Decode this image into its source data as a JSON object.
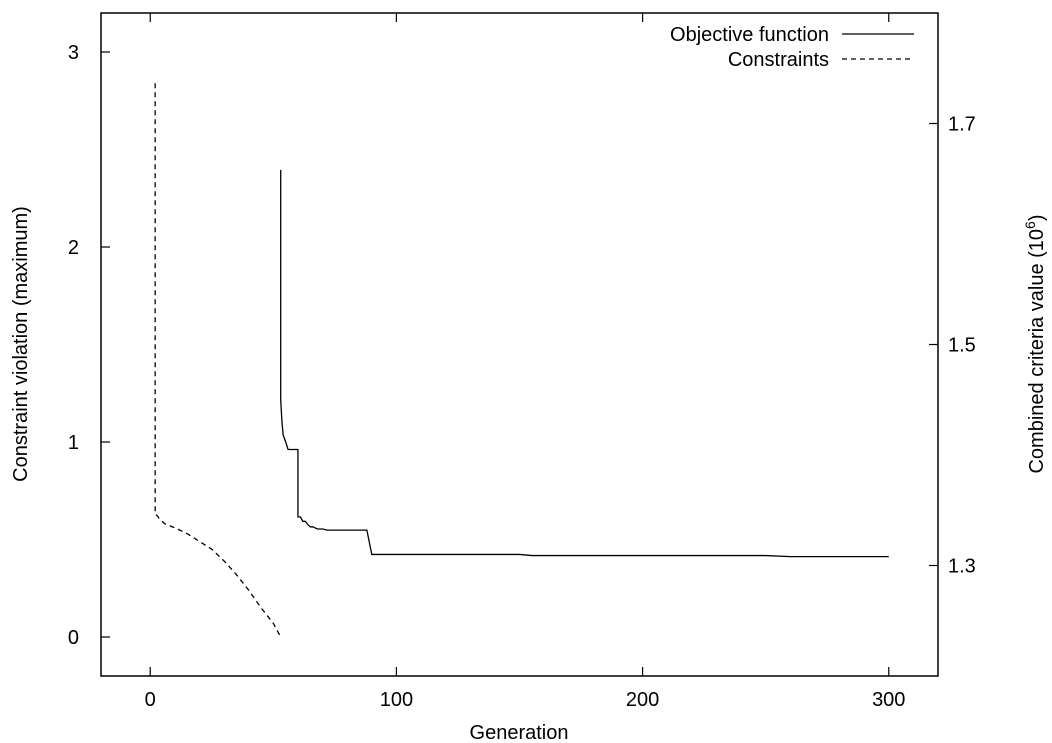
{
  "chart_data": {
    "type": "line",
    "xlabel": "Generation",
    "ylabel_left": "Constraint violation (maximum)",
    "ylabel_right_prefix": "Combined criteria value (10",
    "ylabel_right_exp": "6",
    "ylabel_right_suffix": ")",
    "xlim": [
      -20,
      320
    ],
    "ylim_left": [
      -0.2,
      3.2
    ],
    "ylim_right": [
      1.2,
      1.8
    ],
    "x_ticks": [
      0,
      100,
      200,
      300
    ],
    "x_tick_labels": [
      "0",
      "100",
      "200",
      "300"
    ],
    "y_left_ticks": [
      0,
      1,
      2,
      3
    ],
    "y_left_tick_labels": [
      "0",
      "1",
      "2",
      "3"
    ],
    "y_right_ticks": [
      1.3,
      1.5,
      1.7
    ],
    "y_right_tick_labels": [
      "1.3",
      "1.5",
      "1.7"
    ],
    "legend_position": "top-right",
    "grid": false,
    "series": [
      {
        "name": "Objective function",
        "axis": "right",
        "style": "solid",
        "x": [
          53,
          53,
          53.5,
          54,
          55,
          56,
          57,
          58,
          59,
          60,
          60,
          61,
          62,
          63,
          64,
          65,
          66,
          67,
          68,
          70,
          72,
          75,
          80,
          85,
          88,
          90,
          100,
          120,
          150,
          155,
          200,
          250,
          260,
          300
        ],
        "y": [
          1.658,
          1.45,
          1.43,
          1.418,
          1.412,
          1.405,
          1.405,
          1.405,
          1.405,
          1.405,
          1.344,
          1.344,
          1.34,
          1.34,
          1.337,
          1.335,
          1.335,
          1.334,
          1.333,
          1.333,
          1.332,
          1.332,
          1.332,
          1.332,
          1.332,
          1.31,
          1.31,
          1.31,
          1.31,
          1.309,
          1.309,
          1.309,
          1.308,
          1.308
        ]
      },
      {
        "name": "Constraints",
        "axis": "left",
        "style": "dashed",
        "x": [
          2,
          2,
          3,
          4,
          6,
          10,
          15,
          20,
          25,
          30,
          35,
          40,
          45,
          50,
          53
        ],
        "y": [
          2.84,
          0.63,
          0.62,
          0.6,
          0.58,
          0.56,
          0.53,
          0.49,
          0.45,
          0.39,
          0.32,
          0.24,
          0.15,
          0.07,
          0.0
        ]
      }
    ]
  }
}
